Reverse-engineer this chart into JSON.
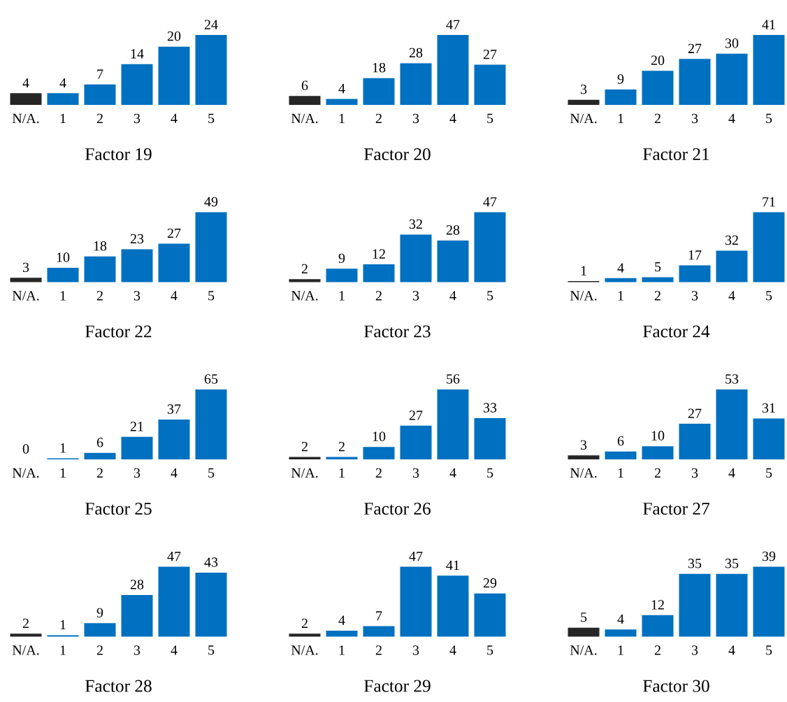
{
  "chart_data": [
    {
      "type": "bar",
      "xlabel": "Factor 19",
      "categories": [
        "N/A.",
        "1",
        "2",
        "3",
        "4",
        "5"
      ],
      "values": [
        4,
        4,
        7,
        14,
        20,
        24
      ],
      "colors": [
        "#262626",
        "#0070c0",
        "#0070c0",
        "#0070c0",
        "#0070c0",
        "#0070c0"
      ],
      "data_labels": true
    },
    {
      "type": "bar",
      "xlabel": "Factor 20",
      "categories": [
        "N/A.",
        "1",
        "2",
        "3",
        "4",
        "5"
      ],
      "values": [
        6,
        4,
        18,
        28,
        47,
        27
      ],
      "colors": [
        "#262626",
        "#0070c0",
        "#0070c0",
        "#0070c0",
        "#0070c0",
        "#0070c0"
      ],
      "data_labels": true
    },
    {
      "type": "bar",
      "xlabel": "Factor 21",
      "categories": [
        "N/A.",
        "1",
        "2",
        "3",
        "4",
        "5"
      ],
      "values": [
        3,
        9,
        20,
        27,
        30,
        41
      ],
      "colors": [
        "#262626",
        "#0070c0",
        "#0070c0",
        "#0070c0",
        "#0070c0",
        "#0070c0"
      ],
      "data_labels": true
    },
    {
      "type": "bar",
      "xlabel": "Factor 22",
      "categories": [
        "N/A.",
        "1",
        "2",
        "3",
        "4",
        "5"
      ],
      "values": [
        3,
        10,
        18,
        23,
        27,
        49
      ],
      "colors": [
        "#262626",
        "#0070c0",
        "#0070c0",
        "#0070c0",
        "#0070c0",
        "#0070c0"
      ],
      "data_labels": true
    },
    {
      "type": "bar",
      "xlabel": "Factor 23",
      "categories": [
        "N/A.",
        "1",
        "2",
        "3",
        "4",
        "5"
      ],
      "values": [
        2,
        9,
        12,
        32,
        28,
        47
      ],
      "colors": [
        "#262626",
        "#0070c0",
        "#0070c0",
        "#0070c0",
        "#0070c0",
        "#0070c0"
      ],
      "data_labels": true
    },
    {
      "type": "bar",
      "xlabel": "Factor 24",
      "categories": [
        "N/A.",
        "1",
        "2",
        "3",
        "4",
        "5"
      ],
      "values": [
        1,
        4,
        5,
        17,
        32,
        71
      ],
      "colors": [
        "#262626",
        "#0070c0",
        "#0070c0",
        "#0070c0",
        "#0070c0",
        "#0070c0"
      ],
      "data_labels": true
    },
    {
      "type": "bar",
      "xlabel": "Factor 25",
      "categories": [
        "N/A.",
        "1",
        "2",
        "3",
        "4",
        "5"
      ],
      "values": [
        0,
        1,
        6,
        21,
        37,
        65
      ],
      "colors": [
        "#262626",
        "#0070c0",
        "#0070c0",
        "#0070c0",
        "#0070c0",
        "#0070c0"
      ],
      "data_labels": true
    },
    {
      "type": "bar",
      "xlabel": "Factor 26",
      "categories": [
        "N/A.",
        "1",
        "2",
        "3",
        "4",
        "5"
      ],
      "values": [
        2,
        2,
        10,
        27,
        56,
        33
      ],
      "colors": [
        "#262626",
        "#0070c0",
        "#0070c0",
        "#0070c0",
        "#0070c0",
        "#0070c0"
      ],
      "data_labels": true
    },
    {
      "type": "bar",
      "xlabel": "Factor 27",
      "categories": [
        "N/A.",
        "1",
        "2",
        "3",
        "4",
        "5"
      ],
      "values": [
        3,
        6,
        10,
        27,
        53,
        31
      ],
      "colors": [
        "#262626",
        "#0070c0",
        "#0070c0",
        "#0070c0",
        "#0070c0",
        "#0070c0"
      ],
      "data_labels": true
    },
    {
      "type": "bar",
      "xlabel": "Factor 28",
      "categories": [
        "N/A.",
        "1",
        "2",
        "3",
        "4",
        "5"
      ],
      "values": [
        2,
        1,
        9,
        28,
        47,
        43
      ],
      "colors": [
        "#262626",
        "#0070c0",
        "#0070c0",
        "#0070c0",
        "#0070c0",
        "#0070c0"
      ],
      "data_labels": true
    },
    {
      "type": "bar",
      "xlabel": "Factor 29",
      "categories": [
        "N/A.",
        "1",
        "2",
        "3",
        "4",
        "5"
      ],
      "values": [
        2,
        4,
        7,
        47,
        41,
        29
      ],
      "colors": [
        "#262626",
        "#0070c0",
        "#0070c0",
        "#0070c0",
        "#0070c0",
        "#0070c0"
      ],
      "data_labels": true
    },
    {
      "type": "bar",
      "xlabel": "Factor 30",
      "categories": [
        "N/A.",
        "1",
        "2",
        "3",
        "4",
        "5"
      ],
      "values": [
        5,
        4,
        12,
        35,
        35,
        39
      ],
      "colors": [
        "#262626",
        "#0070c0",
        "#0070c0",
        "#0070c0",
        "#0070c0",
        "#0070c0"
      ],
      "data_labels": true
    }
  ]
}
